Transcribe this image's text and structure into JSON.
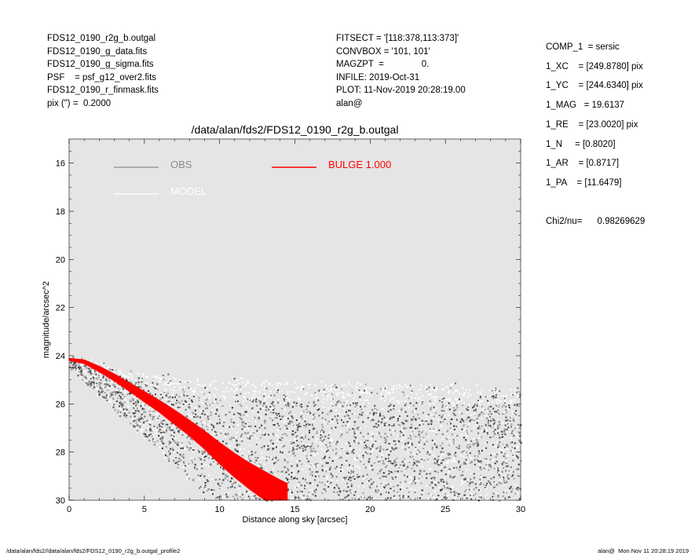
{
  "header_left": [
    "FDS12_0190_r2g_b.outgal",
    "FDS12_0190_g_data.fits",
    "FDS12_0190_g_sigma.fits",
    "PSF    = psf_g12_over2.fits",
    "FDS12_0190_r_finmask.fits",
    "pix (\") =  0.2000"
  ],
  "header_mid": [
    "FITSECT = '[118:378,113:373]'",
    "CONVBOX = '101, 101'",
    "MAGZPT  =               0.",
    "INFILE: 2019-Oct-31",
    "PLOT: 11-Nov-2019 20:28:19.00",
    "alan@"
  ],
  "header_right": [
    "COMP_1  = sersic",
    "1_XC    = [249.8780] pix",
    "1_YC    = [244.6340] pix",
    "1_MAG   = 19.6137",
    "1_RE    = [23.0020] pix",
    "1_N     = [0.8020]",
    "1_AR    = [0.8717]",
    "1_PA    = [11.6479]"
  ],
  "chi2": "Chi2/nu=      0.98269629",
  "footer_left": "/data/alan/fds2//data/alan/fds2/FDS12_0190_r2g_b.outgal_profile2",
  "footer_right": "alan@  Mon Nov 11 20:28:19 2019",
  "chart_data": {
    "type": "scatter",
    "title": "/data/alan/fds2/FDS12_0190_r2g_b.outgal",
    "xlabel": "Distance along sky [arcsec]",
    "ylabel": "magnitude/arcsec^2",
    "xlim": [
      0,
      30
    ],
    "ylim": [
      30,
      15
    ],
    "y_inverted": true,
    "xticks": [
      "0",
      "5",
      "10",
      "15",
      "20",
      "25",
      "30"
    ],
    "yticks": [
      "16",
      "18",
      "20",
      "22",
      "24",
      "26",
      "28",
      "30"
    ],
    "background": "#e5e5e5",
    "legend": [
      {
        "label": "OBS",
        "color": "#8c8c8c"
      },
      {
        "label": "MODEL",
        "color": "#ffffff"
      },
      {
        "label": "BULGE  1.000",
        "color": "#ff0000"
      }
    ],
    "series": [
      {
        "name": "OBS",
        "note": "dense scatter of observed pixel values (grey / dark)",
        "x": [
          0.2,
          1,
          2,
          3,
          4,
          5,
          6,
          7,
          8,
          10,
          12,
          15,
          18,
          20,
          22,
          25,
          28,
          30
        ],
        "y_upper": [
          24.1,
          24.2,
          24.3,
          24.5,
          24.6,
          24.7,
          24.8,
          24.9,
          25.0,
          25.0,
          25.0,
          25.1,
          25.1,
          25.2,
          25.2,
          25.2,
          25.3,
          25.3
        ],
        "y_lower": [
          24.5,
          25.0,
          25.6,
          26.2,
          26.8,
          27.4,
          28.0,
          28.6,
          29.2,
          30.0,
          30.0,
          30.0,
          30.0,
          30.0,
          30.0,
          30.0,
          30.0,
          30.0
        ]
      },
      {
        "name": "BULGE  1.000",
        "note": "model profile band (red)",
        "x": [
          0,
          1,
          2,
          3,
          4,
          5,
          6,
          7,
          8,
          9,
          10,
          11,
          12,
          13,
          14,
          14.5
        ],
        "y": [
          24.15,
          24.25,
          24.55,
          24.9,
          25.3,
          25.7,
          26.1,
          26.55,
          27.0,
          27.5,
          28.05,
          28.55,
          29.0,
          29.4,
          29.8,
          30.0
        ],
        "band_halfwidth": [
          0.05,
          0.08,
          0.12,
          0.15,
          0.18,
          0.22,
          0.25,
          0.3,
          0.33,
          0.38,
          0.45,
          0.5,
          0.55,
          0.6,
          0.65,
          0.7
        ]
      }
    ]
  }
}
